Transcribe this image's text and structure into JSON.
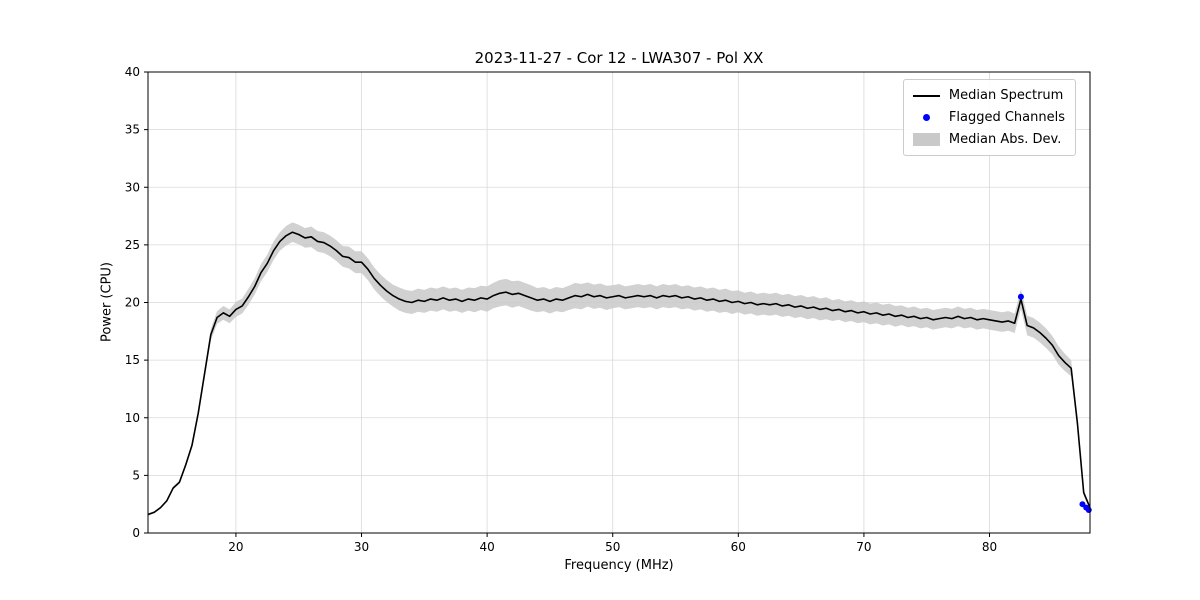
{
  "window": {
    "background": "#ffffff"
  },
  "chart_data": {
    "type": "line",
    "title": "2023-11-27 - Cor 12 - LWA307 - Pol XX",
    "xlabel": "Frequency (MHz)",
    "ylabel": "Power (CPU)",
    "xlim": [
      13,
      88
    ],
    "ylim": [
      0,
      40
    ],
    "xticks": [
      20,
      30,
      40,
      50,
      60,
      70,
      80
    ],
    "yticks": [
      0,
      5,
      10,
      15,
      20,
      25,
      30,
      35,
      40
    ],
    "grid": true,
    "grid_color": "#d9d9d9",
    "legend_position": "upper right",
    "series": [
      {
        "name": "Median Spectrum",
        "type": "line",
        "color": "#000000",
        "x": [
          13,
          13.5,
          14,
          14.5,
          15,
          15.5,
          16,
          16.5,
          17,
          17.5,
          18,
          18.5,
          19,
          19.5,
          20,
          20.5,
          21,
          21.5,
          22,
          22.5,
          23,
          23.5,
          24,
          24.5,
          25,
          25.5,
          26,
          26.5,
          27,
          27.5,
          28,
          28.5,
          29,
          29.5,
          30,
          30.5,
          31,
          31.5,
          32,
          32.5,
          33,
          33.5,
          34,
          34.5,
          35,
          35.5,
          36,
          36.5,
          37,
          37.5,
          38,
          38.5,
          39,
          39.5,
          40,
          40.5,
          41,
          41.5,
          42,
          42.5,
          43,
          43.5,
          44,
          44.5,
          45,
          45.5,
          46,
          46.5,
          47,
          47.5,
          48,
          48.5,
          49,
          49.5,
          50,
          50.5,
          51,
          51.5,
          52,
          52.5,
          53,
          53.5,
          54,
          54.5,
          55,
          55.5,
          56,
          56.5,
          57,
          57.5,
          58,
          58.5,
          59,
          59.5,
          60,
          60.5,
          61,
          61.5,
          62,
          62.5,
          63,
          63.5,
          64,
          64.5,
          65,
          65.5,
          66,
          66.5,
          67,
          67.5,
          68,
          68.5,
          69,
          69.5,
          70,
          70.5,
          71,
          71.5,
          72,
          72.5,
          73,
          73.5,
          74,
          74.5,
          75,
          75.5,
          76,
          76.5,
          77,
          77.5,
          78,
          78.5,
          79,
          79.5,
          80,
          80.5,
          81,
          81.5,
          82,
          82.5,
          83,
          83.5,
          84,
          84.5,
          85,
          85.5,
          86,
          86.5,
          87,
          87.5,
          88
        ],
        "y": [
          1.6,
          1.8,
          2.2,
          2.8,
          3.9,
          4.4,
          5.9,
          7.6,
          10.4,
          13.8,
          17.2,
          18.7,
          19.1,
          18.8,
          19.4,
          19.7,
          20.5,
          21.4,
          22.6,
          23.4,
          24.5,
          25.3,
          25.8,
          26.1,
          25.9,
          25.6,
          25.7,
          25.3,
          25.2,
          24.9,
          24.5,
          24.0,
          23.9,
          23.5,
          23.5,
          22.9,
          22.1,
          21.5,
          21.0,
          20.6,
          20.3,
          20.1,
          20.0,
          20.2,
          20.1,
          20.3,
          20.2,
          20.4,
          20.2,
          20.3,
          20.1,
          20.3,
          20.2,
          20.4,
          20.3,
          20.6,
          20.8,
          20.9,
          20.7,
          20.8,
          20.6,
          20.4,
          20.2,
          20.3,
          20.1,
          20.3,
          20.2,
          20.4,
          20.6,
          20.5,
          20.7,
          20.5,
          20.6,
          20.4,
          20.5,
          20.6,
          20.4,
          20.5,
          20.6,
          20.5,
          20.6,
          20.4,
          20.6,
          20.5,
          20.6,
          20.4,
          20.5,
          20.3,
          20.4,
          20.2,
          20.3,
          20.1,
          20.2,
          20.0,
          20.1,
          19.9,
          20.0,
          19.8,
          19.9,
          19.8,
          19.9,
          19.7,
          19.8,
          19.6,
          19.7,
          19.5,
          19.6,
          19.4,
          19.5,
          19.3,
          19.4,
          19.2,
          19.3,
          19.1,
          19.2,
          19.0,
          19.1,
          18.9,
          19.0,
          18.8,
          18.9,
          18.7,
          18.8,
          18.6,
          18.7,
          18.5,
          18.6,
          18.7,
          18.6,
          18.8,
          18.6,
          18.7,
          18.5,
          18.6,
          18.5,
          18.4,
          18.3,
          18.4,
          18.2,
          20.3,
          18.0,
          17.8,
          17.4,
          16.9,
          16.3,
          15.4,
          14.8,
          14.3,
          9.5,
          3.5,
          2.2
        ]
      },
      {
        "name": "Flagged Channels",
        "type": "scatter",
        "color": "#0000ff",
        "x": [
          82.5,
          87.4,
          87.7,
          87.9
        ],
        "y": [
          20.5,
          2.5,
          2.2,
          2.0
        ]
      },
      {
        "name": "Median Abs. Dev.",
        "type": "band",
        "color": "#c9c9c9",
        "around_series": "Median Spectrum",
        "mad": [
          0.1,
          0.1,
          0.1,
          0.12,
          0.15,
          0.15,
          0.2,
          0.25,
          0.3,
          0.4,
          0.5,
          0.55,
          0.6,
          0.6,
          0.65,
          0.65,
          0.7,
          0.7,
          0.75,
          0.75,
          0.8,
          0.8,
          0.85,
          0.85,
          0.85,
          0.85,
          0.9,
          0.9,
          0.9,
          0.9,
          0.9,
          0.9,
          0.95,
          0.95,
          0.95,
          0.95,
          0.95,
          0.95,
          0.95,
          0.95,
          1.0,
          1.0,
          1.0,
          1.0,
          1.0,
          1.0,
          1.0,
          1.0,
          1.0,
          1.0,
          1.0,
          1.0,
          1.05,
          1.05,
          1.1,
          1.1,
          1.15,
          1.15,
          1.15,
          1.1,
          1.1,
          1.1,
          1.05,
          1.05,
          1.05,
          1.05,
          1.05,
          1.05,
          1.1,
          1.1,
          1.05,
          1.05,
          1.05,
          1.05,
          1.0,
          1.0,
          1.0,
          1.0,
          1.0,
          1.0,
          1.0,
          1.0,
          1.0,
          1.0,
          1.0,
          1.0,
          1.0,
          1.0,
          1.0,
          1.0,
          1.0,
          1.0,
          1.0,
          1.0,
          0.95,
          0.95,
          0.95,
          0.95,
          0.95,
          0.95,
          0.95,
          0.95,
          0.95,
          0.95,
          0.95,
          0.95,
          0.95,
          0.95,
          0.95,
          0.9,
          0.9,
          0.9,
          0.9,
          0.9,
          0.9,
          0.9,
          0.9,
          0.9,
          0.9,
          0.9,
          0.85,
          0.85,
          0.85,
          0.85,
          0.85,
          0.85,
          0.85,
          0.85,
          0.85,
          0.85,
          0.85,
          0.85,
          0.85,
          0.85,
          0.85,
          0.85,
          0.85,
          0.85,
          0.85,
          0.85,
          0.85,
          0.85,
          0.85,
          0.85,
          0.8,
          0.8,
          0.75,
          0.7,
          0.4,
          0.25,
          0.2
        ]
      }
    ]
  }
}
